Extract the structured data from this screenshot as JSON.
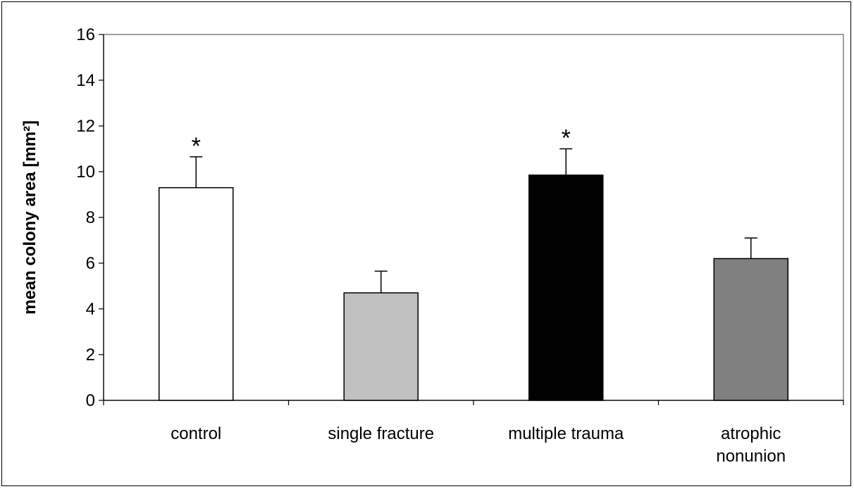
{
  "chart_data": {
    "type": "bar",
    "title": "",
    "xlabel": "",
    "ylabel": "mean colony area [mm²]",
    "ylim": [
      0,
      16
    ],
    "yticks": [
      0,
      2,
      4,
      6,
      8,
      10,
      12,
      14,
      16
    ],
    "grid": false,
    "legend": "none",
    "categories": [
      [
        "control"
      ],
      [
        "single fracture"
      ],
      [
        "multiple trauma"
      ],
      [
        "atrophic",
        "nonunion"
      ]
    ],
    "values": [
      9.3,
      4.7,
      9.85,
      6.2
    ],
    "errors": [
      1.35,
      0.95,
      1.15,
      0.9
    ],
    "colors": [
      "#ffffff",
      "#c0c0c0",
      "#000000",
      "#808080"
    ],
    "annotations": [
      "*",
      "",
      "*",
      ""
    ]
  }
}
